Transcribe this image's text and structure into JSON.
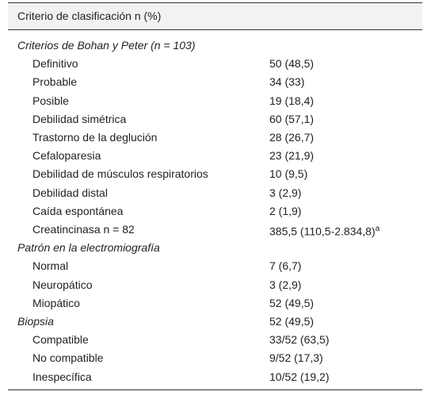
{
  "table": {
    "header": "Criterio de clasificación n (%)",
    "sections": [
      {
        "title": "Criterios de Bohan y Peter (n = 103)",
        "rows": [
          [
            "Definitivo",
            "50 (48,5)"
          ],
          [
            "Probable",
            "34 (33)"
          ],
          [
            "Posible",
            "19 (18,4)"
          ],
          [
            "Debilidad simétrica",
            "60 (57,1)"
          ],
          [
            "Trastorno de la deglución",
            "28 (26,7)"
          ],
          [
            "Cefaloparesia",
            "23 (21,9)"
          ],
          [
            "Debilidad de músculos respiratorios",
            "10 (9,5)"
          ],
          [
            "Debilidad distal",
            "3 (2,9)"
          ],
          [
            "Caída espontánea",
            "2 (1,9)"
          ],
          [
            "Creatincinasa n = 82",
            "385,5 (110,5-2.834,8)",
            "a"
          ]
        ]
      },
      {
        "title": "Patrón en la electromiografía",
        "rows": [
          [
            "Normal",
            "7 (6,7)"
          ],
          [
            "Neuropático",
            "3 (2,9)"
          ],
          [
            "Miopático",
            "52 (49,5)"
          ]
        ]
      },
      {
        "title": "Biopsia",
        "value": "52 (49,5)",
        "rows": [
          [
            "Compatible",
            "33/52 (63,5)"
          ],
          [
            "No compatible",
            "9/52 (17,3)"
          ],
          [
            "Inespecífica",
            "10/52 (19,2)"
          ]
        ]
      }
    ]
  }
}
